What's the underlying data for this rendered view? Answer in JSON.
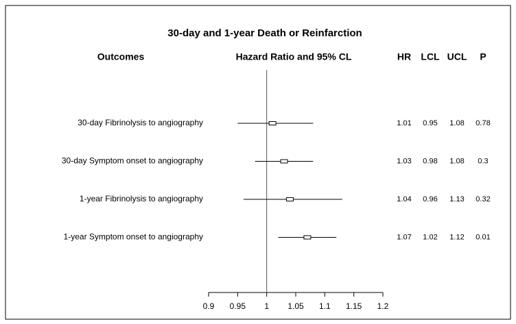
{
  "chart_data": {
    "type": "forest",
    "title": "30-day and 1-year Death or Reinfarction",
    "label_header": "Outcomes",
    "x_label": "Hazard Ratio and 95% CL",
    "categories": [
      "30-day Fibrinolysis to angiography",
      "30-day Symptom onset to angiography",
      "1-year Fibrinolysis to angiography",
      "1-year Symptom onset to angiography"
    ],
    "series": [
      {
        "name": "HR",
        "values": [
          1.01,
          1.03,
          1.04,
          1.07
        ]
      },
      {
        "name": "LCL",
        "values": [
          0.95,
          0.98,
          0.96,
          1.02
        ]
      },
      {
        "name": "UCL",
        "values": [
          1.08,
          1.08,
          1.13,
          1.12
        ]
      },
      {
        "name": "P",
        "values": [
          0.78,
          0.3,
          0.32,
          0.01
        ]
      }
    ],
    "xlim": [
      0.9,
      1.2
    ],
    "xticks": [
      0.9,
      0.95,
      1,
      1.05,
      1.1,
      1.15,
      1.2
    ],
    "reference_line": 1,
    "color": "#000000"
  }
}
